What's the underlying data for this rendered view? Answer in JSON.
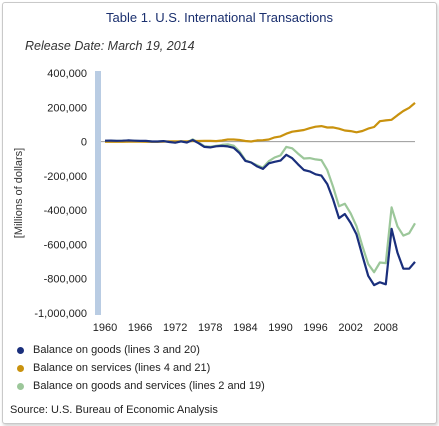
{
  "header": {
    "title": "Table 1. U.S. International Transactions",
    "subtitle": "Release Date: March 19, 2014"
  },
  "source": "Source: U.S. Bureau of Economic Analysis",
  "colors": {
    "goods": "#1a2f7c",
    "services": "#c9920e",
    "goods_services": "#9cc79a",
    "axis_bar": "#b9cce3"
  },
  "chart_data": {
    "type": "line",
    "title": "Table 1. U.S. International Transactions",
    "subtitle": "Release Date: March 19, 2014",
    "xlabel": "",
    "ylabel": "[Millions of dollars]",
    "ylim": [
      -1000000,
      400000
    ],
    "xlim": [
      1960,
      2013
    ],
    "x_tick_labels": [
      "1960",
      "1966",
      "1972",
      "1978",
      "1984",
      "1990",
      "1996",
      "2002",
      "2008"
    ],
    "y_tick_labels": [
      "400,000",
      "200,000",
      "0",
      "-200,000",
      "-400,000",
      "-600,000",
      "-800,000",
      "-1,000,000"
    ],
    "grid": false,
    "legend_position": "bottom",
    "x": [
      1960,
      1961,
      1962,
      1963,
      1964,
      1965,
      1966,
      1967,
      1968,
      1969,
      1970,
      1971,
      1972,
      1973,
      1974,
      1975,
      1976,
      1977,
      1978,
      1979,
      1980,
      1981,
      1982,
      1983,
      1984,
      1985,
      1986,
      1987,
      1988,
      1989,
      1990,
      1991,
      1992,
      1993,
      1994,
      1995,
      1996,
      1997,
      1998,
      1999,
      2000,
      2001,
      2002,
      2003,
      2004,
      2005,
      2006,
      2007,
      2008,
      2009,
      2010,
      2011,
      2012,
      2013
    ],
    "series": [
      {
        "name": "Balance on goods (lines 3 and 20)",
        "values": [
          4892,
          5571,
          4521,
          5224,
          6801,
          4951,
          3817,
          3800,
          635,
          607,
          2603,
          -2260,
          -6416,
          911,
          -5505,
          8903,
          -9483,
          -31091,
          -33927,
          -27568,
          -25500,
          -28023,
          -36485,
          -67102,
          -112492,
          -122173,
          -145081,
          -159557,
          -126959,
          -117749,
          -111037,
          -76937,
          -96897,
          -132451,
          -165831,
          -174170,
          -191000,
          -198428,
          -248221,
          -337068,
          -446783,
          -422370,
          -475245,
          -541643,
          -665390,
          -782804,
          -837289,
          -821196,
          -832492,
          -509694,
          -648678,
          -740999,
          -741475,
          -702200
        ]
      },
      {
        "name": "Balance on services (lines 4 and 21)",
        "values": [
          -1385,
          -1382,
          -1151,
          -1087,
          -539,
          -349,
          -541,
          -1166,
          -1180,
          -1166,
          -349,
          957,
          973,
          989,
          1213,
          3501,
          3401,
          3845,
          4164,
          3003,
          6093,
          11852,
          12329,
          9335,
          3314,
          294,
          6543,
          7874,
          12339,
          24091,
          30173,
          45802,
          57685,
          62141,
          67337,
          77786,
          86935,
          90155,
          82081,
          82729,
          74855,
          64399,
          61178,
          54014,
          61588,
          75573,
          85032,
          119124,
          123773,
          126961,
          154020,
          178500,
          196781,
          225300
        ]
      },
      {
        "name": "Balance on goods and services (lines 2 and 19)",
        "values": [
          3508,
          4195,
          3370,
          4210,
          6022,
          4664,
          2939,
          2604,
          250,
          91,
          2254,
          -1302,
          -5443,
          1900,
          -4292,
          12404,
          -6082,
          -27246,
          -29763,
          -24565,
          -19407,
          -16172,
          -24156,
          -57767,
          -109072,
          -121880,
          -138538,
          -151684,
          -114566,
          -93141,
          -80864,
          -31135,
          -39212,
          -70311,
          -98493,
          -96384,
          -104065,
          -108273,
          -166140,
          -263755,
          -377339,
          -362339,
          -418955,
          -493890,
          -609883,
          -714245,
          -761716,
          -705375,
          -708726,
          -383774,
          -494658,
          -548625,
          -534656,
          -476900
        ]
      }
    ]
  }
}
